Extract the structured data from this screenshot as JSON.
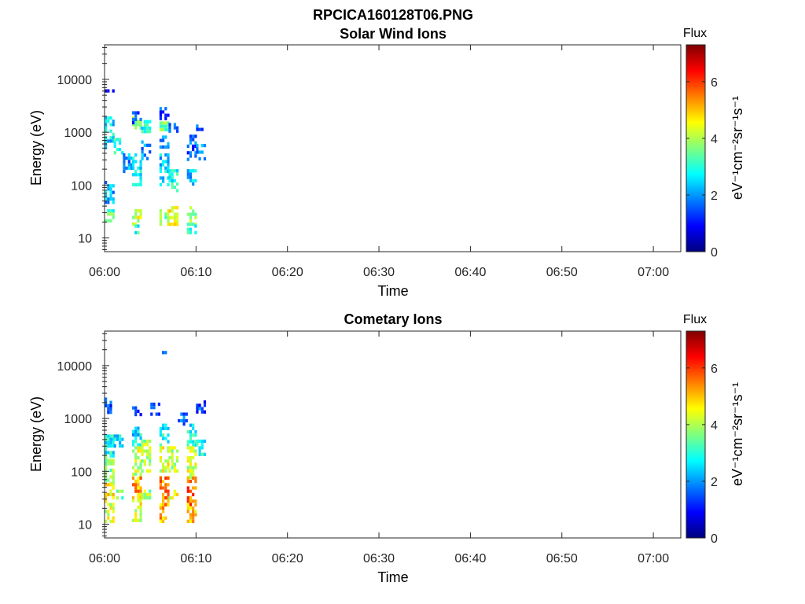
{
  "figure": {
    "title": "RPCICA160128T06.PNG"
  },
  "colorbar": {
    "title": "Flux",
    "unit_label": "eV⁻¹cm⁻²sr⁻¹s⁻¹",
    "range": [
      0,
      7.3
    ],
    "ticks": [
      "0",
      "2",
      "4",
      "6"
    ],
    "colormap": "jet",
    "colors": [
      "#00007f",
      "#0000ff",
      "#007fff",
      "#00ffff",
      "#7fff7f",
      "#ffff00",
      "#ff7f00",
      "#ff0000",
      "#7f0000"
    ]
  },
  "chart_data": [
    {
      "type": "heatmap",
      "title": "Solar Wind Ions",
      "xlabel": "Time",
      "ylabel": "Energy (eV)",
      "yscale": "log",
      "ylim": [
        5.5,
        45000
      ],
      "xlim": [
        "06:00",
        "07:03"
      ],
      "x_ticks": [
        "06:00",
        "06:10",
        "06:20",
        "06:30",
        "06:40",
        "06:50",
        "07:00"
      ],
      "y_ticks": [
        "10",
        "100",
        "1000",
        "10000"
      ],
      "grid": false,
      "colorbar": "right",
      "data": [
        {
          "t": "06:00",
          "e_min": 500,
          "e_max": 2000,
          "flux": 2.5
        },
        {
          "t": "06:00",
          "e_min": 50,
          "e_max": 120,
          "flux": 2.2
        },
        {
          "t": "06:00",
          "e_min": 20,
          "e_max": 35,
          "flux": 3.3
        },
        {
          "t": "06:00",
          "e_min": 5800,
          "e_max": 6500,
          "flux": 1.0
        },
        {
          "t": "06:01",
          "e_min": 400,
          "e_max": 900,
          "flux": 2.8
        },
        {
          "t": "06:02",
          "e_min": 180,
          "e_max": 400,
          "flux": 2.0
        },
        {
          "t": "06:03",
          "e_min": 1200,
          "e_max": 2000,
          "flux": 3.6
        },
        {
          "t": "06:03",
          "e_min": 1600,
          "e_max": 2500,
          "flux": 1.4
        },
        {
          "t": "06:03",
          "e_min": 100,
          "e_max": 400,
          "flux": 2.5
        },
        {
          "t": "06:03",
          "e_min": 18,
          "e_max": 35,
          "flux": 4.2
        },
        {
          "t": "06:03",
          "e_min": 12,
          "e_max": 18,
          "flux": 3.0
        },
        {
          "t": "06:04",
          "e_min": 300,
          "e_max": 700,
          "flux": 2.0
        },
        {
          "t": "06:04",
          "e_min": 1100,
          "e_max": 1700,
          "flux": 2.8
        },
        {
          "t": "06:06",
          "e_min": 1800,
          "e_max": 3000,
          "flux": 1.4
        },
        {
          "t": "06:06",
          "e_min": 1100,
          "e_max": 1600,
          "flux": 3.6
        },
        {
          "t": "06:06",
          "e_min": 500,
          "e_max": 1000,
          "flux": 2.2
        },
        {
          "t": "06:06",
          "e_min": 100,
          "e_max": 400,
          "flux": 2.4
        },
        {
          "t": "06:06",
          "e_min": 18,
          "e_max": 35,
          "flux": 3.6
        },
        {
          "t": "06:07",
          "e_min": 80,
          "e_max": 200,
          "flux": 2.8
        },
        {
          "t": "06:07",
          "e_min": 18,
          "e_max": 40,
          "flux": 4.4
        },
        {
          "t": "06:07",
          "e_min": 1100,
          "e_max": 1500,
          "flux": 2.0
        },
        {
          "t": "06:09",
          "e_min": 300,
          "e_max": 900,
          "flux": 1.6
        },
        {
          "t": "06:09",
          "e_min": 100,
          "e_max": 200,
          "flux": 2.4
        },
        {
          "t": "06:09",
          "e_min": 18,
          "e_max": 40,
          "flux": 3.6
        },
        {
          "t": "06:09",
          "e_min": 12,
          "e_max": 18,
          "flux": 2.8
        },
        {
          "t": "06:10",
          "e_min": 300,
          "e_max": 600,
          "flux": 2.0
        },
        {
          "t": "06:10",
          "e_min": 1200,
          "e_max": 1400,
          "flux": 1.8
        }
      ]
    },
    {
      "type": "heatmap",
      "title": "Cometary Ions",
      "xlabel": "Time",
      "ylabel": "Energy (eV)",
      "yscale": "log",
      "ylim": [
        5.5,
        45000
      ],
      "xlim": [
        "06:00",
        "07:03"
      ],
      "x_ticks": [
        "06:00",
        "06:10",
        "06:20",
        "06:30",
        "06:40",
        "06:50",
        "07:00"
      ],
      "y_ticks": [
        "10",
        "100",
        "1000",
        "10000"
      ],
      "grid": false,
      "colorbar": "right",
      "data": [
        {
          "t": "06:00",
          "e_min": 200,
          "e_max": 500,
          "flux": 2.8
        },
        {
          "t": "06:00",
          "e_min": 60,
          "e_max": 200,
          "flux": 3.8
        },
        {
          "t": "06:00",
          "e_min": 25,
          "e_max": 60,
          "flux": 4.6
        },
        {
          "t": "06:00",
          "e_min": 12,
          "e_max": 25,
          "flux": 4.2
        },
        {
          "t": "06:00",
          "e_min": 1400,
          "e_max": 2500,
          "flux": 1.4
        },
        {
          "t": "06:01",
          "e_min": 300,
          "e_max": 500,
          "flux": 2.5
        },
        {
          "t": "06:01",
          "e_min": 30,
          "e_max": 45,
          "flux": 3.6
        },
        {
          "t": "06:03",
          "e_min": 1200,
          "e_max": 1700,
          "flux": 1.2
        },
        {
          "t": "06:03",
          "e_min": 300,
          "e_max": 700,
          "flux": 2.6
        },
        {
          "t": "06:03",
          "e_min": 80,
          "e_max": 300,
          "flux": 4.2
        },
        {
          "t": "06:03",
          "e_min": 30,
          "e_max": 80,
          "flux": 5.2
        },
        {
          "t": "06:03",
          "e_min": 12,
          "e_max": 30,
          "flux": 4.4
        },
        {
          "t": "06:04",
          "e_min": 100,
          "e_max": 400,
          "flux": 4.0
        },
        {
          "t": "06:04",
          "e_min": 30,
          "e_max": 45,
          "flux": 3.8
        },
        {
          "t": "06:05",
          "e_min": 1200,
          "e_max": 2000,
          "flux": 1.4
        },
        {
          "t": "06:06",
          "e_min": 300,
          "e_max": 800,
          "flux": 2.8
        },
        {
          "t": "06:06",
          "e_min": 80,
          "e_max": 300,
          "flux": 4.4
        },
        {
          "t": "06:06",
          "e_min": 25,
          "e_max": 80,
          "flux": 5.4
        },
        {
          "t": "06:06",
          "e_min": 12,
          "e_max": 25,
          "flux": 5.2
        },
        {
          "t": "06:06",
          "e_min": 17000,
          "e_max": 19000,
          "flux": 1.2
        },
        {
          "t": "06:07",
          "e_min": 100,
          "e_max": 300,
          "flux": 4.0
        },
        {
          "t": "06:07",
          "e_min": 30,
          "e_max": 45,
          "flux": 4.4
        },
        {
          "t": "06:08",
          "e_min": 800,
          "e_max": 1300,
          "flux": 1.6
        },
        {
          "t": "06:09",
          "e_min": 300,
          "e_max": 800,
          "flux": 2.8
        },
        {
          "t": "06:09",
          "e_min": 80,
          "e_max": 300,
          "flux": 4.2
        },
        {
          "t": "06:09",
          "e_min": 25,
          "e_max": 80,
          "flux": 5.6
        },
        {
          "t": "06:09",
          "e_min": 12,
          "e_max": 25,
          "flux": 5.0
        },
        {
          "t": "06:10",
          "e_min": 200,
          "e_max": 400,
          "flux": 3.0
        },
        {
          "t": "06:10",
          "e_min": 1400,
          "e_max": 2200,
          "flux": 1.4
        }
      ]
    }
  ]
}
